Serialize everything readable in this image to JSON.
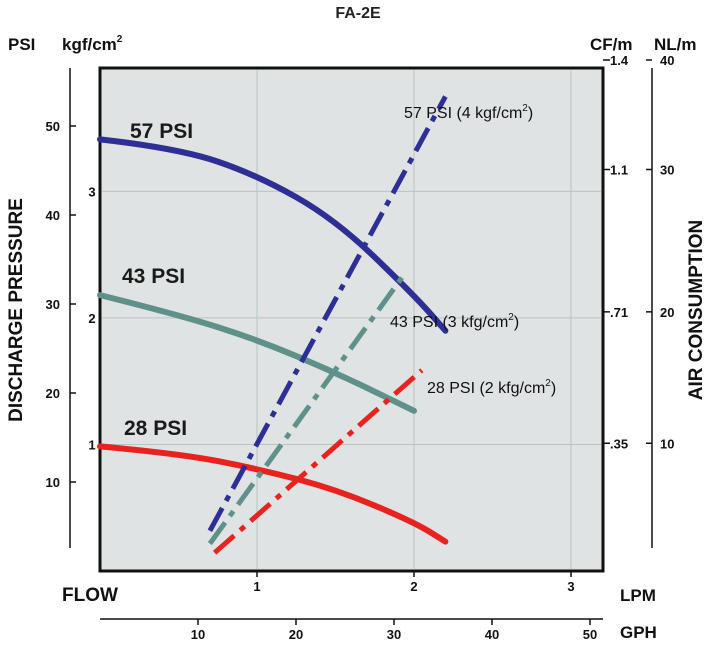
{
  "chart_data": {
    "type": "line",
    "title": "FA-2E",
    "left_units": {
      "psi": "PSI",
      "kgf": "kgf/cm",
      "kgf_sup": "2"
    },
    "right_units": {
      "cfm": "CF/m",
      "nlm": "NL/m"
    },
    "ylabel_left": "DISCHARGE PRESSURE",
    "ylabel_right": "AIR CONSUMPTION",
    "xlabel": "FLOW",
    "x_units": {
      "lpm": "LPM",
      "gph": "GPH"
    },
    "psi_ticks": [
      "10",
      "20",
      "30",
      "40",
      "50"
    ],
    "kgf_ticks": [
      "1",
      "2",
      "3"
    ],
    "cfm_ticks": [
      ".35",
      ".71",
      "1.1",
      "1.4"
    ],
    "nlm_ticks": [
      "10",
      "20",
      "30",
      "40"
    ],
    "lpm_ticks": [
      "1",
      "2",
      "3"
    ],
    "gph_ticks": [
      "10",
      "20",
      "30",
      "40",
      "50"
    ],
    "xlim_lpm": [
      0,
      3.2
    ],
    "ylim_psi": [
      0,
      57
    ],
    "grid": true,
    "colors": {
      "p57": "#2d2f94",
      "p43": "#5f9089",
      "p28": "#e8231f",
      "plot_bg": "#dfe3e3",
      "grid": "#b9c4c0"
    },
    "series": [
      {
        "name": "57 PSI",
        "kind": "pressure",
        "color": "#2d2f94",
        "x": [
          0,
          0.5,
          1.0,
          1.5,
          2.0,
          2.2
        ],
        "y": [
          48.5,
          47.5,
          44.5,
          39.5,
          31.0,
          27.0
        ]
      },
      {
        "name": "43 PSI",
        "kind": "pressure",
        "color": "#5f9089",
        "x": [
          0,
          0.5,
          1.0,
          1.5,
          2.0
        ],
        "y": [
          31.0,
          28.8,
          26.0,
          22.3,
          18.0
        ]
      },
      {
        "name": "28 PSI",
        "kind": "pressure",
        "color": "#e8231f",
        "x": [
          0,
          0.5,
          1.0,
          1.5,
          2.0,
          2.2
        ],
        "y": [
          14.0,
          13.2,
          11.5,
          9.2,
          5.5,
          3.3
        ]
      },
      {
        "name": "57 PSI (4 kgf/cm",
        "label_sup": "2",
        "label_end": ")",
        "kind": "air",
        "color": "#2d2f94",
        "x": [
          0.7,
          2.2
        ],
        "y": [
          0.11,
          1.3
        ]
      },
      {
        "name": "43 PSI (3 kfg/cm",
        "label_sup": "2",
        "label_end": ")",
        "kind": "air",
        "color": "#5f9089",
        "x": [
          0.7,
          1.95
        ],
        "y": [
          0.075,
          0.82
        ]
      },
      {
        "name": "28 PSI (2 kfg/cm",
        "label_sup": "2",
        "label_end": ")",
        "kind": "air",
        "color": "#e8231f",
        "x": [
          0.73,
          2.05
        ],
        "y": [
          0.05,
          0.55
        ]
      }
    ]
  }
}
